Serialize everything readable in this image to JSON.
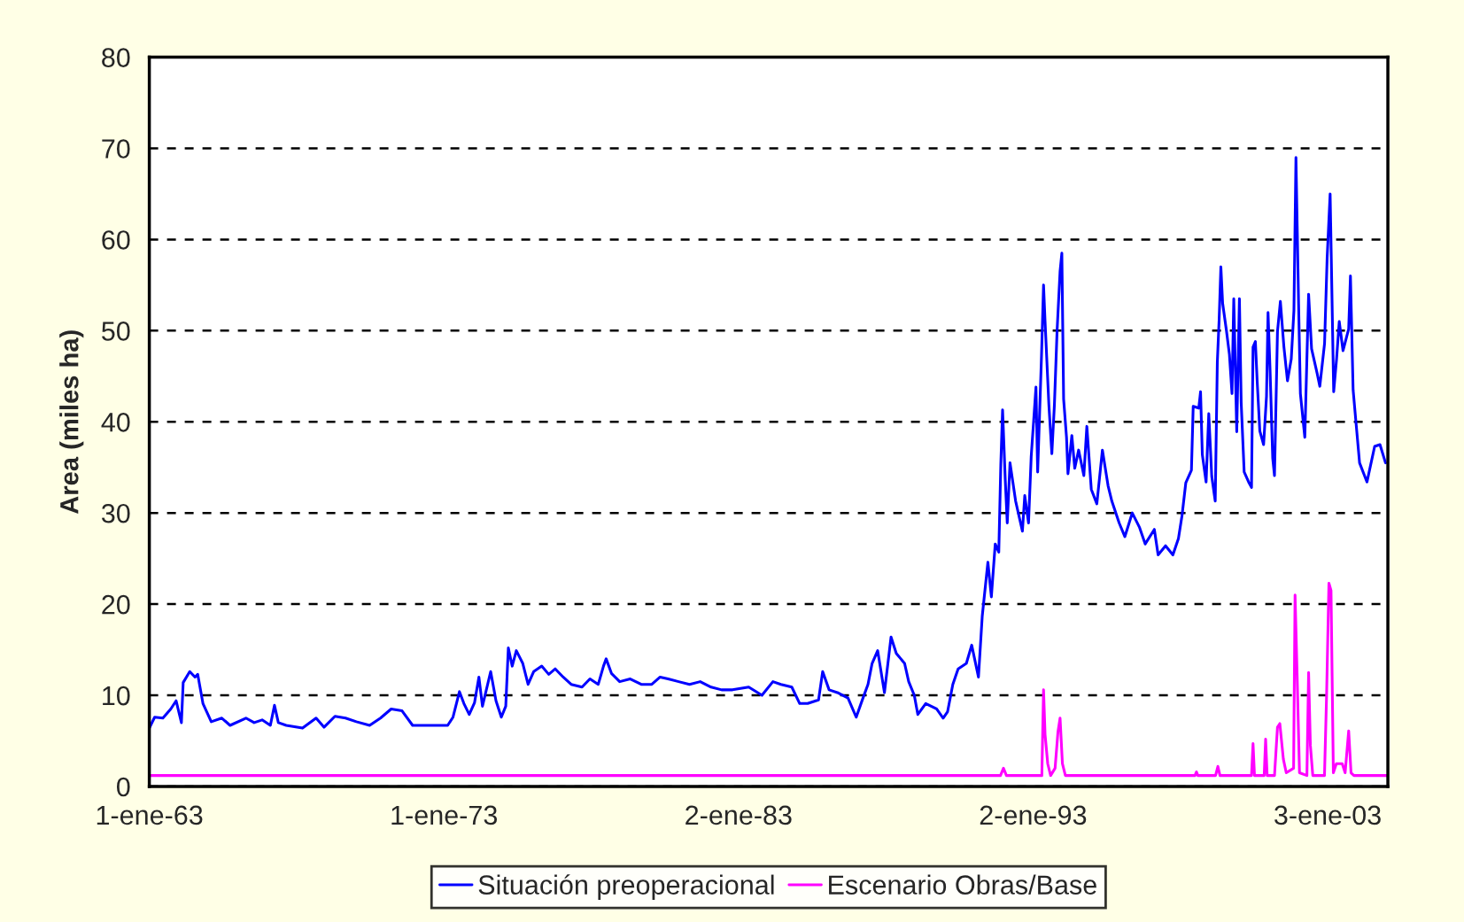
{
  "chart_data": {
    "type": "line",
    "ylabel": "Area (miles ha)",
    "xlim": [
      "1963-01-01",
      "2005-01-19"
    ],
    "xticks": [
      {
        "value": "1963-01-01",
        "label": "1-ene-63"
      },
      {
        "value": "1973-01-01",
        "label": "1-ene-73"
      },
      {
        "value": "1983-01-02",
        "label": "2-ene-83"
      },
      {
        "value": "1993-01-02",
        "label": "2-ene-93"
      },
      {
        "value": "2003-01-03",
        "label": "3-ene-03"
      }
    ],
    "ylim": [
      0,
      80
    ],
    "yticks": [
      0,
      10,
      20,
      30,
      40,
      50,
      60,
      70,
      80
    ],
    "grid": "y",
    "legend": "bottom",
    "line_style": "solid",
    "series": [
      {
        "name": "Situación preoperacional",
        "color": "#0000ff",
        "x": [
          "1963-01-01",
          "1963-03-08",
          "1963-06-18",
          "1963-09-24",
          "1963-11-29",
          "1964-02-03",
          "1964-02-25",
          "1964-05-16",
          "1964-07-21",
          "1964-08-23",
          "1964-10-27",
          "1965-02-07",
          "1965-06-18",
          "1965-09-28",
          "1966-04-13",
          "1966-07-24",
          "1966-10-31",
          "1967-02-10",
          "1967-04-02",
          "1967-05-20",
          "1967-08-26",
          "1968-03-15",
          "1968-08-30",
          "1968-12-06",
          "1969-04-21",
          "1969-08-30",
          "1970-01-12",
          "1970-06-25",
          "1970-11-07",
          "1971-03-19",
          "1971-08-01",
          "1971-12-10",
          "1973-02-17",
          "1973-04-24",
          "1973-07-13",
          "1973-09-06",
          "1973-11-11",
          "1974-01-16",
          "1974-03-11",
          "1974-04-24",
          "1974-08-04",
          "1974-10-09",
          "1974-12-14",
          "1975-02-07",
          "1975-03-11",
          "1975-04-28",
          "1975-06-18",
          "1975-09-06",
          "1975-11-11",
          "1976-01-19",
          "1976-04-28",
          "1976-07-24",
          "1976-10-13",
          "1977-01-19",
          "1977-04-28",
          "1977-09-10",
          "1977-12-17",
          "1978-03-30",
          "1978-06-03",
          "1978-07-06",
          "1978-09-10",
          "1978-12-21",
          "1979-05-01",
          "1979-09-14",
          "1980-01-23",
          "1980-05-05",
          "1980-08-12",
          "1980-12-21",
          "1981-05-05",
          "1981-09-14",
          "1982-01-27",
          "1982-06-07",
          "1982-10-20",
          "1983-05-09",
          "1983-10-20",
          "1984-03-04",
          "1984-06-11",
          "1984-10-24",
          "1985-01-30",
          "1985-05-09",
          "1985-09-21",
          "1985-11-11",
          "1986-01-30",
          "1986-05-12",
          "1986-09-21",
          "1987-01-01",
          "1987-03-26",
          "1987-05-27",
          "1987-07-17",
          "1987-09-24",
          "1987-12-17",
          "1988-03-08",
          "1988-05-12",
          "1988-08-23",
          "1988-10-13",
          "1988-12-21",
          "1989-02-03",
          "1989-05-12",
          "1989-09-24",
          "1989-12-14",
          "1990-02-07",
          "1990-04-13",
          "1990-06-18",
          "1990-09-28",
          "1990-12-03",
          "1991-02-25",
          "1991-04-13",
          "1991-06-22",
          "1991-08-04",
          "1991-09-21",
          "1991-11-04",
          "1991-11-29",
          "1991-12-21",
          "1992-01-23",
          "1992-02-17",
          "1992-03-22",
          "1992-05-31",
          "1992-08-23",
          "1992-09-21",
          "1992-11-07",
          "1992-12-10",
          "1993-02-07",
          "1993-02-28",
          "1993-04-17",
          "1993-05-12",
          "1993-05-31",
          "1993-07-17",
          "1993-08-23",
          "1993-09-24",
          "1993-10-27",
          "1993-12-03",
          "1993-12-25",
          "1994-01-16",
          "1994-02-21",
          "1994-03-11",
          "1994-04-28",
          "1994-06-03",
          "1994-07-21",
          "1994-09-24",
          "1994-10-31",
          "1994-12-25",
          "1995-03-04",
          "1995-05-12",
          "1995-07-21",
          "1995-09-06",
          "1995-12-06",
          "1996-02-14",
          "1996-05-16",
          "1996-08-15",
          "1996-10-24",
          "1997-02-14",
          "1997-04-02",
          "1997-07-03",
          "1997-10-02",
          "1997-12-10",
          "1998-01-23",
          "1998-03-11",
          "1998-05-20",
          "1998-06-11",
          "1998-08-19",
          "1998-09-10",
          "1998-10-02",
          "1998-11-18",
          "1998-12-21",
          "1999-01-27",
          "1999-03-11",
          "1999-04-06",
          "1999-04-28",
          "1999-05-20",
          "1999-06-11",
          "1999-07-28",
          "1999-09-03",
          "1999-10-05",
          "1999-10-27",
          "1999-12-03",
          "2000-01-05",
          "2000-01-27",
          "2000-03-04",
          "2000-04-28",
          "2000-06-03",
          "2000-06-22",
          "2000-07-21",
          "2000-08-12",
          "2000-09-14",
          "2000-10-31",
          "2000-12-06",
          "2000-12-25",
          "2001-01-19",
          "2001-02-21",
          "2001-03-15",
          "2001-04-21",
          "2001-05-27",
          "2001-07-10",
          "2001-08-23",
          "2001-10-09",
          "2001-11-11",
          "2001-12-06",
          "2002-01-08",
          "2002-01-30",
          "2002-03-26",
          "2002-05-12",
          "2002-06-18",
          "2002-08-26",
          "2002-09-28",
          "2002-11-26",
          "2002-12-28",
          "2003-02-03",
          "2003-03-19",
          "2003-04-24",
          "2003-05-27",
          "2003-07-13",
          "2003-09-21",
          "2003-10-13",
          "2003-11-15",
          "2003-12-21",
          "2004-02-03",
          "2004-05-05",
          "2004-08-08",
          "2004-10-13",
          "2004-12-21"
        ],
        "values": [
          6.4,
          7.6,
          7.5,
          8.5,
          9.4,
          7,
          11.4,
          12.6,
          12,
          12.3,
          9.1,
          7.1,
          7.5,
          6.7,
          7.5,
          7,
          7.3,
          6.7,
          8.9,
          7,
          6.7,
          6.4,
          7.5,
          6.5,
          7.7,
          7.5,
          7.1,
          6.7,
          7.5,
          8.5,
          8.3,
          6.7,
          6.7,
          7.6,
          10.4,
          9.1,
          7.9,
          9.2,
          12,
          8.8,
          12.6,
          9.4,
          7.6,
          8.8,
          15.2,
          13.2,
          14.9,
          13.5,
          11.2,
          12.6,
          13.2,
          12.3,
          12.9,
          12,
          11.2,
          10.9,
          11.8,
          11.2,
          13.2,
          14,
          12.4,
          11.5,
          11.8,
          11.2,
          11.2,
          12,
          11.8,
          11.5,
          11.2,
          11.5,
          10.9,
          10.6,
          10.6,
          10.9,
          10,
          11.5,
          11.2,
          10.9,
          9.1,
          9.1,
          9.5,
          12.6,
          10.6,
          10.3,
          9.7,
          7.6,
          9.7,
          11.2,
          13.5,
          14.9,
          10.3,
          16.4,
          14.6,
          13.5,
          11.5,
          10,
          7.9,
          9.1,
          8.5,
          7.5,
          8.2,
          11.2,
          12.9,
          13.5,
          15.5,
          12,
          18.7,
          24.6,
          20.8,
          26.6,
          25.7,
          35.3,
          41.3,
          33.7,
          28.9,
          35.5,
          31.3,
          28,
          31.9,
          28.9,
          36.2,
          43.8,
          34.5,
          47.3,
          55,
          51,
          41.9,
          36.5,
          41.9,
          50,
          56.5,
          58.5,
          42.5,
          38.3,
          34.3,
          38.5,
          34.9,
          36.9,
          34.1,
          39.5,
          32.6,
          31,
          36.9,
          33,
          31.3,
          28.9,
          27.4,
          30,
          28.4,
          26.6,
          28.2,
          25.4,
          26.4,
          25.4,
          27.2,
          29.7,
          33.3,
          34.7,
          41.7,
          41.5,
          43.3,
          36.4,
          33.4,
          40.9,
          34,
          31.3,
          46.5,
          51.1,
          57,
          53,
          50,
          47.4,
          43.1,
          53.5,
          38.9,
          53.5,
          42.1,
          34.5,
          33.4,
          32.8,
          48.2,
          48.8,
          44.5,
          39,
          37.5,
          42.8,
          52,
          45.7,
          36,
          34.1,
          49.9,
          53.2,
          48.2,
          44.5,
          46.9,
          52.2,
          69,
          52.9,
          43.1,
          38.3,
          54,
          48,
          45.3,
          43.9,
          48.6,
          58,
          65,
          43.3,
          46.9,
          51,
          47.8,
          50.2,
          56,
          43.5,
          39.9,
          35.5,
          33.4,
          37.3,
          37.5,
          35.5
        ]
      },
      {
        "name": "Escenario Obras/Base",
        "color": "#ff00ff",
        "x": [
          "1963-01-01",
          "1991-11-25",
          "1992-01-01",
          "1992-02-07",
          "1993-04-21",
          "1993-05-12",
          "1993-05-31",
          "1993-07-03",
          "1993-08-08",
          "1993-10-02",
          "1993-11-07",
          "1993-12-03",
          "1994-01-01",
          "1994-02-07",
          "1998-07-03",
          "1998-07-21",
          "1998-08-08",
          "1999-03-15",
          "1999-04-13",
          "1999-05-09",
          "2000-06-03",
          "2000-06-22",
          "2000-07-10",
          "2000-11-07",
          "2000-11-25",
          "2000-12-14",
          "2001-03-15",
          "2001-04-21",
          "2001-05-20",
          "2001-07-03",
          "2001-08-08",
          "2001-11-07",
          "2001-11-25",
          "2001-12-21",
          "2002-01-19",
          "2002-04-21",
          "2002-05-12",
          "2002-06-03",
          "2002-07-03",
          "2002-11-25",
          "2002-12-21",
          "2003-01-19",
          "2003-02-14",
          "2003-03-15",
          "2003-04-21",
          "2003-07-03",
          "2003-08-08",
          "2003-09-21",
          "2003-10-20",
          "2003-11-25",
          "2005-01-19"
        ],
        "values": [
          1.2,
          1.2,
          2,
          1.2,
          1.2,
          10.6,
          5.7,
          2.5,
          1.2,
          2,
          6,
          7.5,
          2.5,
          1.2,
          1.2,
          1.6,
          1.2,
          1.2,
          2.2,
          1.2,
          1.2,
          4.7,
          1.2,
          1.2,
          5.2,
          1.2,
          1.2,
          6.5,
          6.9,
          3,
          1.5,
          2,
          21,
          12.1,
          1.5,
          1.2,
          12.5,
          4.5,
          1.2,
          1.2,
          10,
          22.3,
          21.5,
          1.5,
          2.5,
          2.5,
          1.5,
          6.1,
          1.5,
          1.2,
          1.2
        ]
      }
    ]
  }
}
